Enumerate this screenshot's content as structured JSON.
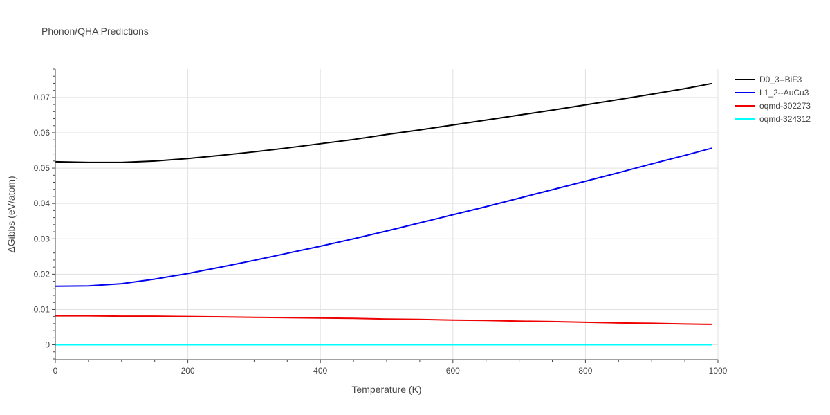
{
  "chart_data": {
    "type": "line",
    "title": "Phonon/QHA Predictions",
    "xlabel": "Temperature (K)",
    "ylabel": "ΔGibbs (eV/atom)",
    "xlim": [
      0,
      1000
    ],
    "ylim": [
      -0.0042,
      0.078
    ],
    "x_ticks": [
      0,
      200,
      400,
      600,
      800,
      1000
    ],
    "x_tick_labels": [
      "0",
      "200",
      "400",
      "600",
      "800",
      "1000"
    ],
    "y_ticks": [
      0,
      0.01,
      0.02,
      0.03,
      0.04,
      0.05,
      0.06,
      0.07
    ],
    "y_tick_labels": [
      "0",
      "0.01",
      "0.02",
      "0.03",
      "0.04",
      "0.05",
      "0.06",
      "0.07"
    ],
    "grid": true,
    "legend_position": "top-right",
    "series": [
      {
        "name": "D0_3--BiF3",
        "color": "#000000",
        "x": [
          0,
          50,
          100,
          150,
          200,
          250,
          300,
          350,
          400,
          450,
          500,
          550,
          600,
          650,
          700,
          750,
          800,
          850,
          900,
          950,
          990
        ],
        "y": [
          0.0518,
          0.0516,
          0.0516,
          0.052,
          0.0527,
          0.0536,
          0.0546,
          0.0557,
          0.0569,
          0.0581,
          0.0595,
          0.0608,
          0.0622,
          0.0636,
          0.065,
          0.0664,
          0.0679,
          0.0694,
          0.0709,
          0.0725,
          0.0739
        ]
      },
      {
        "name": "L1_2--AuCu3",
        "color": "#0000ee",
        "x": [
          0,
          50,
          100,
          150,
          200,
          250,
          300,
          350,
          400,
          450,
          500,
          550,
          600,
          650,
          700,
          750,
          800,
          850,
          900,
          950,
          990
        ],
        "y": [
          0.0166,
          0.0167,
          0.0173,
          0.0186,
          0.0202,
          0.022,
          0.0239,
          0.0259,
          0.0279,
          0.03,
          0.0322,
          0.0345,
          0.0368,
          0.0391,
          0.0415,
          0.0439,
          0.0463,
          0.0487,
          0.0512,
          0.0536,
          0.0556
        ]
      },
      {
        "name": "oqmd-302273",
        "color": "#ee0000",
        "x": [
          0,
          50,
          100,
          150,
          200,
          250,
          300,
          350,
          400,
          450,
          500,
          550,
          600,
          650,
          700,
          750,
          800,
          850,
          900,
          950,
          990
        ],
        "y": [
          0.0082,
          0.0082,
          0.0081,
          0.0081,
          0.008,
          0.0079,
          0.0078,
          0.0077,
          0.0076,
          0.0075,
          0.0073,
          0.0072,
          0.007,
          0.0069,
          0.0067,
          0.0066,
          0.0064,
          0.0062,
          0.0061,
          0.0059,
          0.0058
        ]
      },
      {
        "name": "oqmd-324312",
        "color": "#00ffff",
        "x": [
          0,
          50,
          100,
          150,
          200,
          250,
          300,
          350,
          400,
          450,
          500,
          550,
          600,
          650,
          700,
          750,
          800,
          850,
          900,
          950,
          990
        ],
        "y": [
          0,
          0,
          0,
          0,
          0,
          0,
          0,
          0,
          0,
          0,
          0,
          0,
          0,
          0,
          0,
          0,
          0,
          0,
          0,
          0,
          0
        ]
      }
    ]
  }
}
